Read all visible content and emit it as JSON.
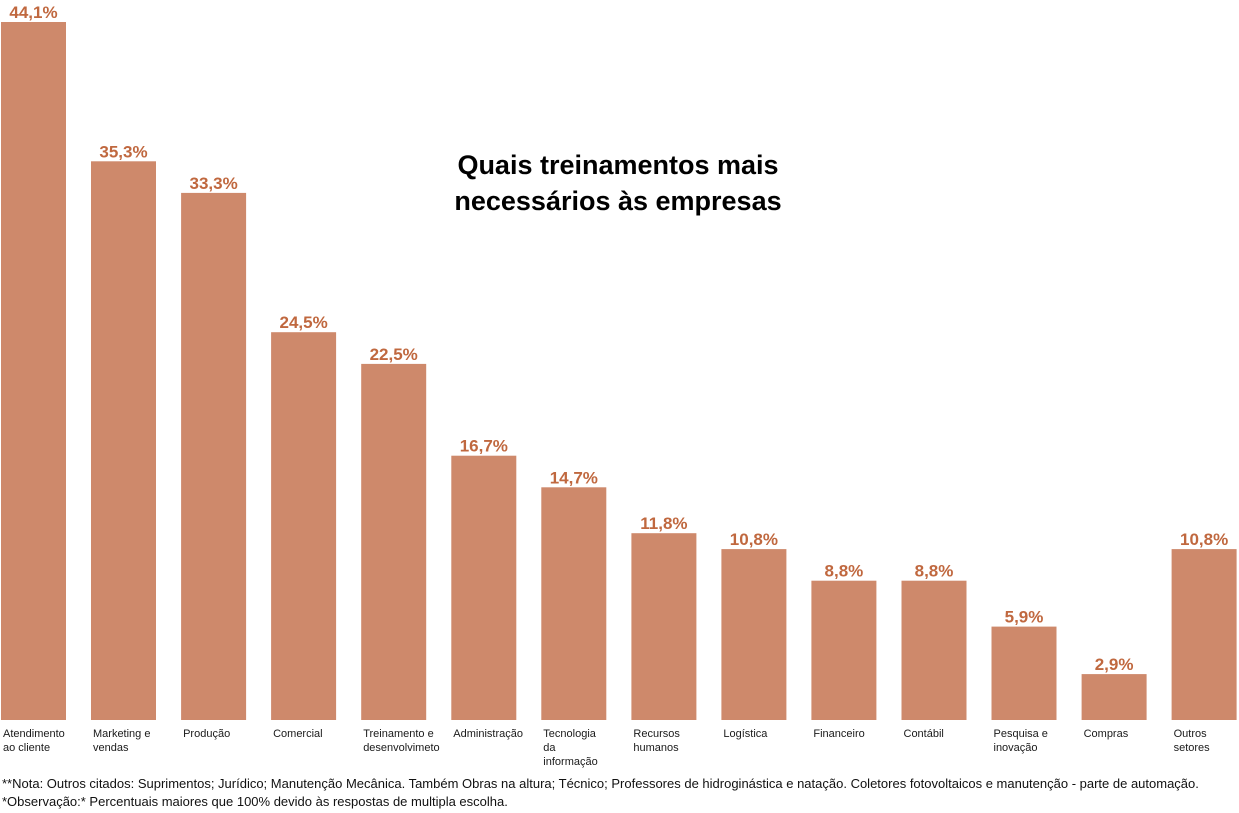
{
  "chart_data": {
    "type": "bar",
    "title": [
      "Quais treinamentos mais",
      "necessários às empresas"
    ],
    "categories": [
      [
        "Atendimento",
        "ao cliente"
      ],
      [
        "Marketing e",
        "vendas"
      ],
      [
        "Produção"
      ],
      [
        "Comercial"
      ],
      [
        "Treinamento e",
        "desenvolvimeto"
      ],
      [
        "Administração"
      ],
      [
        "Tecnologia",
        "da",
        "informação"
      ],
      [
        "Recursos",
        "humanos"
      ],
      [
        "Logística"
      ],
      [
        "Financeiro"
      ],
      [
        "Contábil"
      ],
      [
        "Pesquisa e",
        "inovação"
      ],
      [
        "Compras"
      ],
      [
        "Outros",
        "setores"
      ]
    ],
    "values": [
      44.1,
      35.3,
      33.3,
      24.5,
      22.5,
      16.7,
      14.7,
      11.8,
      10.8,
      8.8,
      8.8,
      5.9,
      2.9,
      10.8
    ],
    "value_labels": [
      "44,1%",
      "35,3%",
      "33,3%",
      "24,5%",
      "22,5%",
      "16,7%",
      "14,7%",
      "11,8%",
      "10,8%",
      "8,8%",
      "8,8%",
      "5,9%",
      "2,9%",
      "10,8%"
    ],
    "ylim": [
      0,
      44.1
    ],
    "xlabel": "",
    "ylabel": "",
    "grid": false,
    "colors": {
      "bar": "#ce896b",
      "value_label": "#c0683f",
      "text": "#1a1a1a"
    }
  },
  "notes": {
    "line1": "**Nota: Outros citados: Suprimentos; Jurídico; Manutenção Mecânica. Também Obras na altura; Técnico; Professores de hidroginástica e natação. Coletores fotovoltaicos e manutenção - parte de automação.",
    "line2": "*Observação:* Percentuais maiores que 100% devido às respostas de multipla escolha."
  }
}
